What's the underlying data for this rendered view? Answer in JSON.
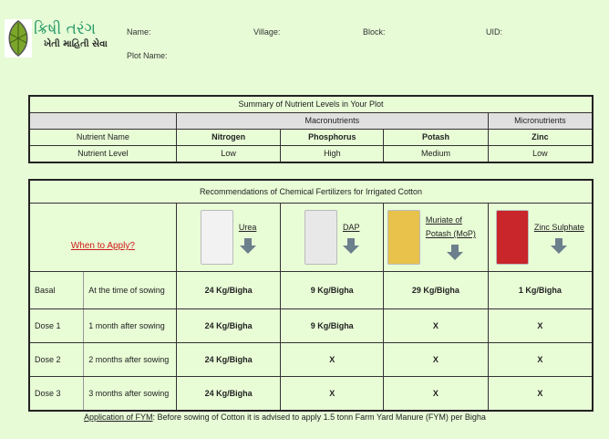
{
  "logo": {
    "title": "ક્રિષી તરંગ",
    "subtitle": "ખેતી માહિતી સેવા"
  },
  "header": {
    "name": "Name:",
    "village": "Village:",
    "block": "Block:",
    "uid": "UID:",
    "plot_name": "Plot Name:"
  },
  "summary": {
    "title": "Summary of Nutrient Levels in Your Plot",
    "macro": "Macronutrients",
    "micro": "Micronutrients",
    "row_name_label": "Nutrient Name",
    "row_level_label": "Nutrient Level",
    "nutrients": [
      {
        "name": "Nitrogen",
        "level": "Low"
      },
      {
        "name": "Phosphorus",
        "level": "High"
      },
      {
        "name": "Potash",
        "level": "Medium"
      },
      {
        "name": "Zinc",
        "level": "Low"
      }
    ]
  },
  "recommendations": {
    "title": "Recommendations of Chemical Fertilizers for Irrigated Cotton",
    "when_label": "When to Apply?",
    "fertilizers": [
      {
        "name": "Urea",
        "color": "#f2f2f2"
      },
      {
        "name": "DAP",
        "color": "#e8e8e8"
      },
      {
        "name": "Muriate of Potash (MoP)",
        "color": "#e8c24a"
      },
      {
        "name": "Zinc Sulphate",
        "color": "#c8262a"
      }
    ],
    "rows": [
      {
        "dose": "Basal",
        "time": "At the time of sowing",
        "values": [
          "24 Kg/Bigha",
          "9 Kg/Bigha",
          "29 Kg/Bigha",
          "1 Kg/Bigha"
        ]
      },
      {
        "dose": "Dose 1",
        "time": "1 month after sowing",
        "values": [
          "24 Kg/Bigha",
          "9 Kg/Bigha",
          "X",
          "X"
        ]
      },
      {
        "dose": "Dose 2",
        "time": "2 months after sowing",
        "values": [
          "24 Kg/Bigha",
          "X",
          "X",
          "X"
        ]
      },
      {
        "dose": "Dose 3",
        "time": "3 months after sowing",
        "values": [
          "24 Kg/Bigha",
          "X",
          "X",
          "X"
        ]
      }
    ]
  },
  "fym": {
    "label": "Application of FYM",
    "text": ": Before sowing of Cotton it is advised to apply 1.5 tonn Farm Yard Manure (FYM) per Bigha"
  }
}
